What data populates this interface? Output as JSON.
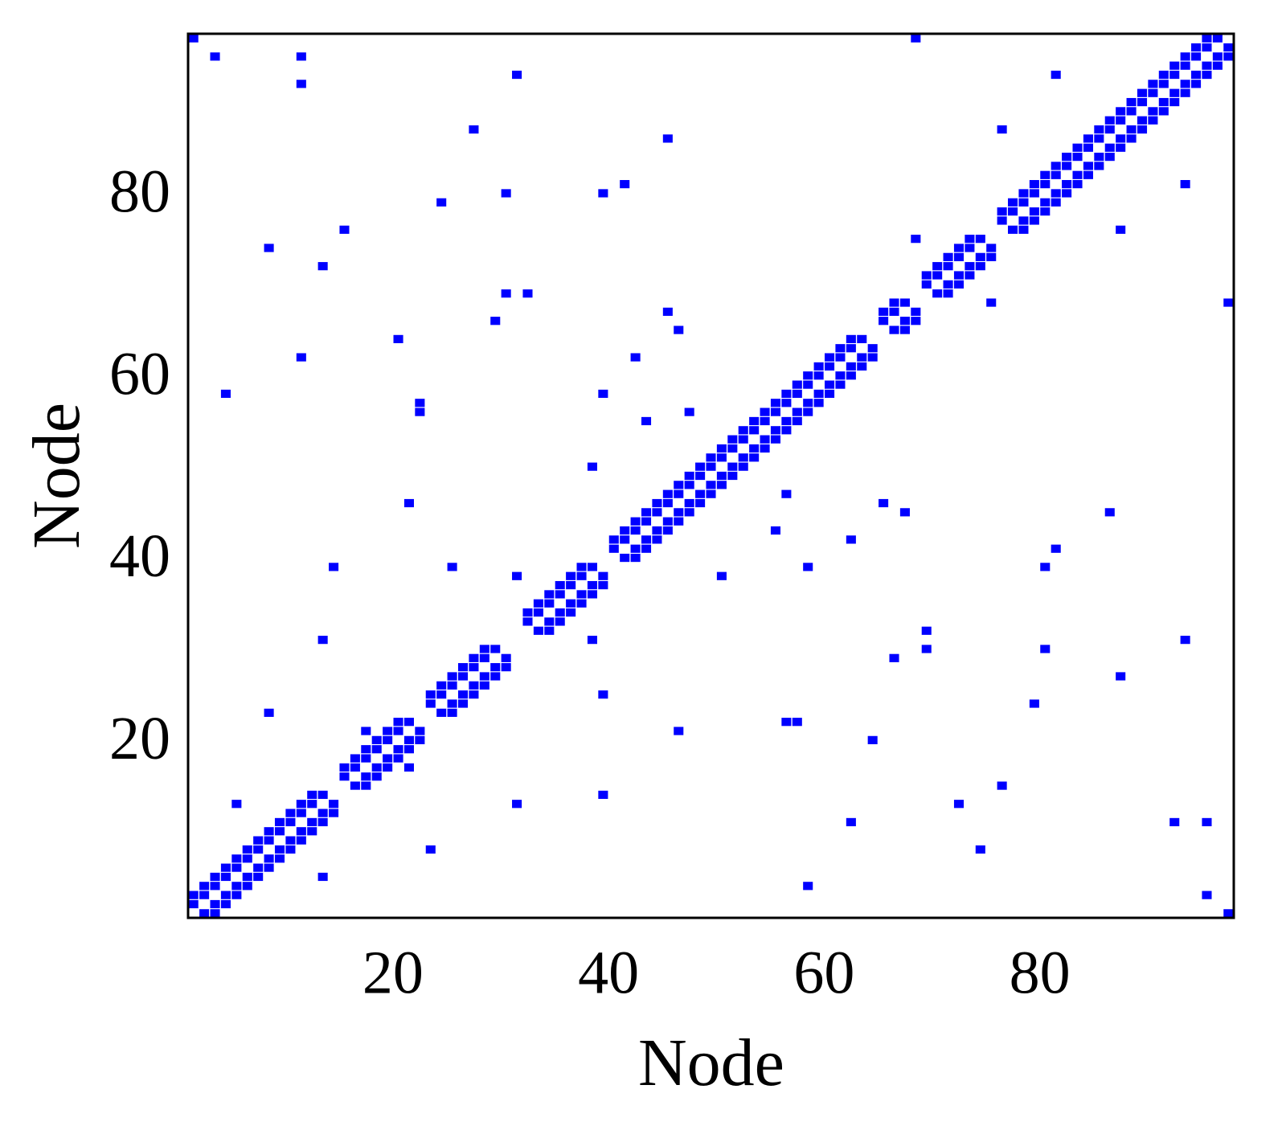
{
  "chart_data": {
    "type": "spy",
    "xlabel": "Node",
    "ylabel": "Node",
    "color": "#0000ff",
    "xlim": [
      1,
      98
    ],
    "ylim": [
      1,
      98
    ],
    "xticks": [
      20,
      40,
      60,
      80
    ],
    "yticks": [
      20,
      40,
      60,
      80
    ],
    "symmetric": true,
    "x": [
      1,
      2,
      3,
      4,
      5,
      6,
      7,
      8,
      9,
      10,
      11,
      12,
      13,
      1,
      2,
      3,
      4,
      5,
      6,
      7,
      8,
      9,
      10,
      11,
      12,
      15,
      16,
      17,
      18,
      19,
      20,
      21,
      15,
      16,
      17,
      18,
      19,
      20,
      23,
      24,
      25,
      26,
      27,
      28,
      29,
      23,
      24,
      25,
      26,
      27,
      28,
      32,
      33,
      34,
      35,
      36,
      37,
      38,
      32,
      33,
      34,
      35,
      36,
      37,
      40,
      41,
      42,
      43,
      44,
      45,
      46,
      47,
      48,
      49,
      50,
      51,
      52,
      53,
      54,
      55,
      56,
      57,
      58,
      59,
      60,
      61,
      62,
      63,
      40,
      41,
      42,
      43,
      44,
      45,
      46,
      47,
      48,
      49,
      50,
      51,
      52,
      53,
      54,
      55,
      56,
      57,
      58,
      59,
      60,
      61,
      62,
      65,
      66,
      67,
      65,
      66,
      69,
      70,
      71,
      72,
      73,
      74,
      69,
      70,
      71,
      72,
      73,
      76,
      77,
      78,
      79,
      80,
      81,
      82,
      83,
      84,
      85,
      86,
      87,
      88,
      89,
      90,
      91,
      92,
      93,
      94,
      95,
      96,
      76,
      77,
      78,
      79,
      80,
      81,
      82,
      83,
      84,
      85,
      86,
      87,
      88,
      89,
      90,
      91,
      92,
      93,
      94,
      95,
      1,
      3,
      11,
      11,
      31,
      27,
      45,
      68,
      81,
      76,
      24,
      30,
      39,
      41,
      15,
      8,
      13,
      68,
      30,
      32,
      29,
      45,
      46,
      42,
      11,
      20,
      4,
      39,
      22,
      22,
      43,
      47,
      38,
      21,
      14,
      25,
      31,
      13,
      8,
      5,
      17
    ],
    "y": [
      2,
      3,
      4,
      5,
      6,
      7,
      8,
      9,
      10,
      11,
      12,
      13,
      14,
      3,
      4,
      5,
      6,
      7,
      8,
      9,
      10,
      11,
      12,
      13,
      14,
      16,
      17,
      18,
      19,
      20,
      21,
      22,
      17,
      18,
      19,
      20,
      21,
      22,
      24,
      25,
      26,
      27,
      28,
      29,
      30,
      25,
      26,
      27,
      28,
      29,
      30,
      33,
      34,
      35,
      36,
      37,
      38,
      39,
      34,
      35,
      36,
      37,
      38,
      39,
      41,
      42,
      43,
      44,
      45,
      46,
      47,
      48,
      49,
      50,
      51,
      52,
      53,
      54,
      55,
      56,
      57,
      58,
      59,
      60,
      61,
      62,
      63,
      64,
      42,
      43,
      44,
      45,
      46,
      47,
      48,
      49,
      50,
      51,
      52,
      53,
      54,
      55,
      56,
      57,
      58,
      59,
      60,
      61,
      62,
      63,
      64,
      66,
      67,
      68,
      67,
      68,
      70,
      71,
      72,
      73,
      74,
      75,
      71,
      72,
      73,
      74,
      75,
      77,
      78,
      79,
      80,
      81,
      82,
      83,
      84,
      85,
      86,
      87,
      88,
      89,
      90,
      91,
      92,
      93,
      94,
      95,
      96,
      97,
      78,
      79,
      80,
      81,
      82,
      83,
      84,
      85,
      86,
      87,
      88,
      89,
      90,
      91,
      92,
      93,
      94,
      95,
      96,
      97,
      97,
      95,
      95,
      92,
      93,
      87,
      86,
      97,
      93,
      87,
      79,
      80,
      80,
      81,
      76,
      74,
      72,
      75,
      69,
      69,
      66,
      67,
      65,
      62,
      62,
      64,
      58,
      58,
      57,
      56,
      55,
      56,
      50,
      46,
      39,
      39,
      38,
      31,
      23,
      13,
      21
    ]
  }
}
